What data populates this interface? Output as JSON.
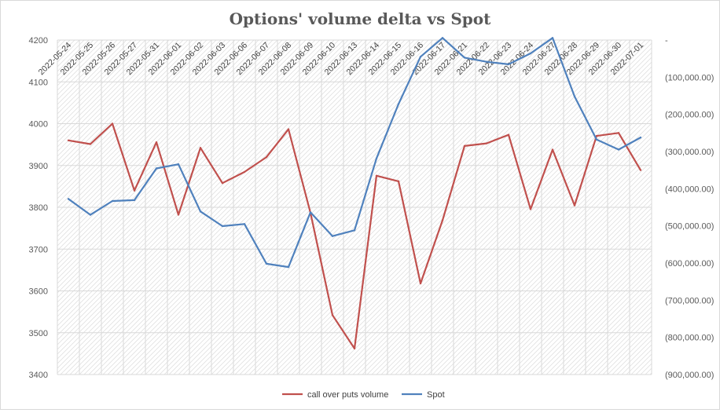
{
  "chart_data": {
    "type": "line",
    "title": "Options' volume delta vs Spot",
    "categories": [
      "2022-05-24",
      "2022-05-25",
      "2022-05-26",
      "2022-05-27",
      "2022-05-31",
      "2022-06-01",
      "2022-06-02",
      "2022-06-03",
      "2022-06-06",
      "2022-06-07",
      "2022-06-08",
      "2022-06-09",
      "2022-06-10",
      "2022-06-13",
      "2022-06-14",
      "2022-06-15",
      "2022-06-16",
      "2022-06-17",
      "2022-06-21",
      "2022-06-22",
      "2022-06-23",
      "2022-06-24",
      "2022-06-27",
      "2022-06-28",
      "2022-06-29",
      "2022-06-30",
      "2022-07-01"
    ],
    "y_left": {
      "min": 3400,
      "max": 4200,
      "step": 100,
      "ticks": [
        "3400",
        "3500",
        "3600",
        "3700",
        "3800",
        "3900",
        "4000",
        "4100",
        "4200"
      ]
    },
    "y_right": {
      "min": -900000,
      "max": 0,
      "step": 100000,
      "ticks": [
        "(900,000.00)",
        "(800,000.00)",
        "(700,000.00)",
        "(600,000.00)",
        "(500,000.00)",
        "(400,000.00)",
        "(300,000.00)",
        "(200,000.00)",
        "(100,000.00)",
        "-"
      ]
    },
    "series": [
      {
        "name": "call over puts volume",
        "axis": "right",
        "color": "#c0504d",
        "values": [
          -270000,
          -280000,
          -225000,
          -405000,
          -275000,
          -470000,
          -290000,
          -385000,
          -355000,
          -315000,
          -240000,
          -465000,
          -740000,
          -830000,
          -365000,
          -380000,
          -655000,
          -485000,
          -285000,
          -278000,
          -255000,
          -455000,
          -295000,
          -445000,
          -258000,
          -250000,
          -350000
        ]
      },
      {
        "name": "Spot",
        "axis": "left",
        "color": "#4f81bd",
        "values": [
          3820,
          3782,
          3815,
          3817,
          3893,
          3903,
          3790,
          3755,
          3760,
          3665,
          3657,
          3788,
          3731,
          3745,
          3917,
          4047,
          4160,
          4205,
          4158,
          4148,
          4142,
          4168,
          4205,
          4065,
          3962,
          3938,
          3967
        ]
      }
    ],
    "grid": true,
    "legend_position": "bottom"
  }
}
